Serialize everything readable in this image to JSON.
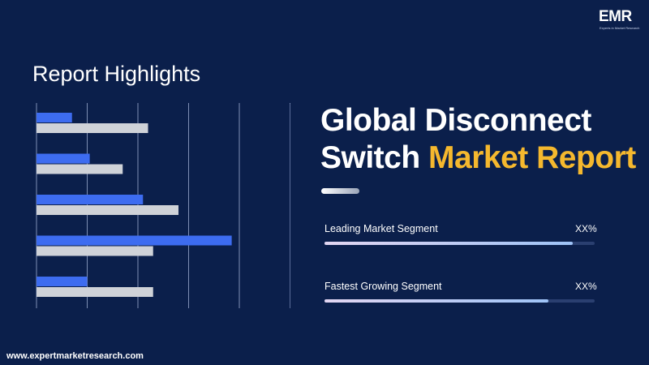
{
  "logo": {
    "text": "EMR",
    "tagline": "Experts in Market Research"
  },
  "section_title": "Report Highlights",
  "headline": {
    "line1": "Global Disconnect",
    "line2_white": "Switch",
    "line2_accent": "Market Report"
  },
  "metrics": [
    {
      "label": "Leading Market Segment",
      "value": "XX%",
      "fraction": 0.92
    },
    {
      "label": "Fastest Growing Segment",
      "value": "XX%",
      "fraction": 0.83
    }
  ],
  "footer": {
    "url": "www.expertmarketresearch.com"
  },
  "colors": {
    "background": "#0b1f4b",
    "accent": "#f5b82e",
    "series_blue": "#3d6cf0",
    "series_gray": "#cfd2d8"
  },
  "chart_data": {
    "type": "bar",
    "orientation": "horizontal",
    "categories": [
      "",
      "",
      "",
      "",
      ""
    ],
    "series": [
      {
        "values": [
          0.7,
          1.05,
          2.1,
          3.85,
          1.0
        ]
      },
      {
        "values": [
          2.2,
          1.7,
          2.8,
          2.3,
          2.3
        ]
      }
    ],
    "xlim": [
      0,
      5
    ],
    "grid": true,
    "legend": "none"
  }
}
